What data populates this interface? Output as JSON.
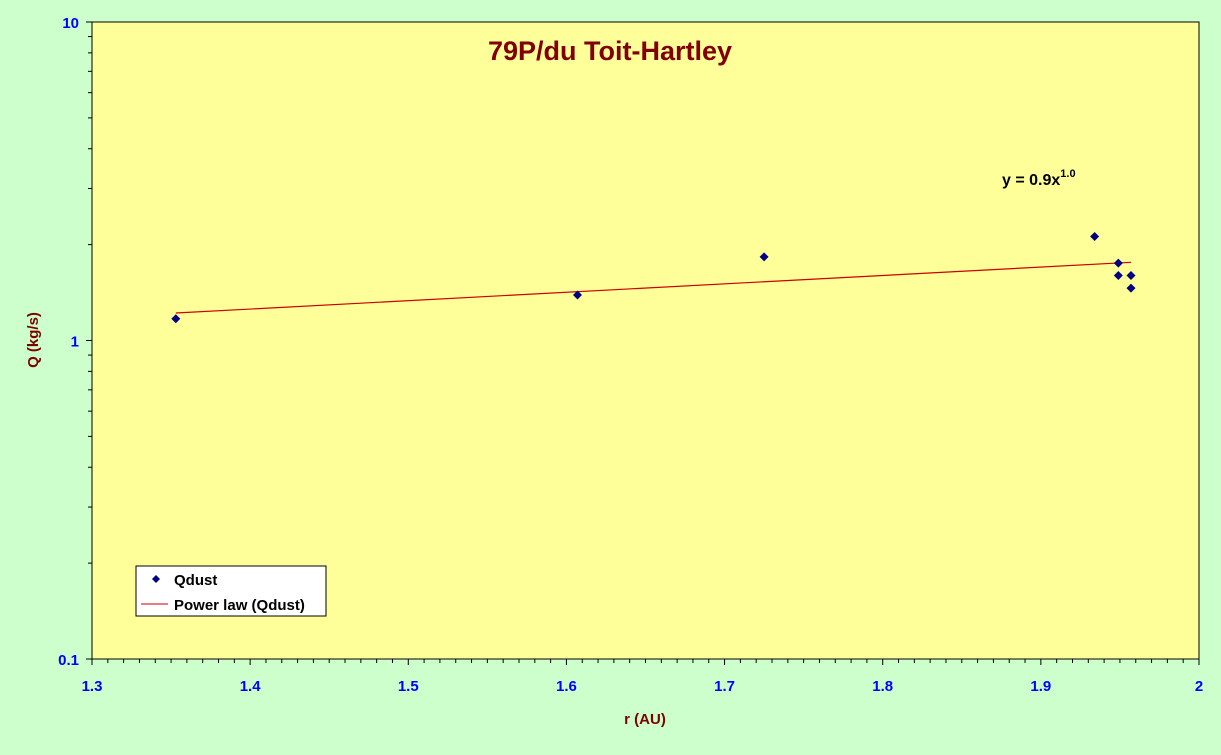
{
  "chart_data": {
    "type": "scatter",
    "title": "79P/du Toit-Hartley",
    "xlabel": "r (AU)",
    "ylabel": "Q (kg/s)",
    "xlim": [
      1.3,
      2.0
    ],
    "ylim": [
      0.1,
      10
    ],
    "y_scale": "log",
    "x_ticks": [
      "1.3",
      "1.4",
      "1.5",
      "1.6",
      "1.7",
      "1.8",
      "1.9",
      "2"
    ],
    "y_ticks": [
      "0.1",
      "1",
      "10"
    ],
    "grid": false,
    "legend_position": "bottom-left",
    "series": [
      {
        "name": "Qdust",
        "marker": "diamond",
        "color": "#000080",
        "x": [
          1.353,
          1.607,
          1.725,
          1.934,
          1.949,
          1.949,
          1.957,
          1.957
        ],
        "y": [
          1.17,
          1.39,
          1.83,
          2.12,
          1.75,
          1.6,
          1.6,
          1.46
        ]
      }
    ],
    "trendline": {
      "name": "Power law (Qdust)",
      "color": "#cc0000",
      "equation_base": "y = 0.9x",
      "equation_exp": "1.0",
      "x": [
        1.353,
        1.957
      ],
      "y": [
        1.22,
        1.76
      ]
    },
    "colors": {
      "background": "#ccffcc",
      "plot_area": "#ffff99",
      "axis_text": "#0000ff",
      "title": "#800000"
    }
  }
}
